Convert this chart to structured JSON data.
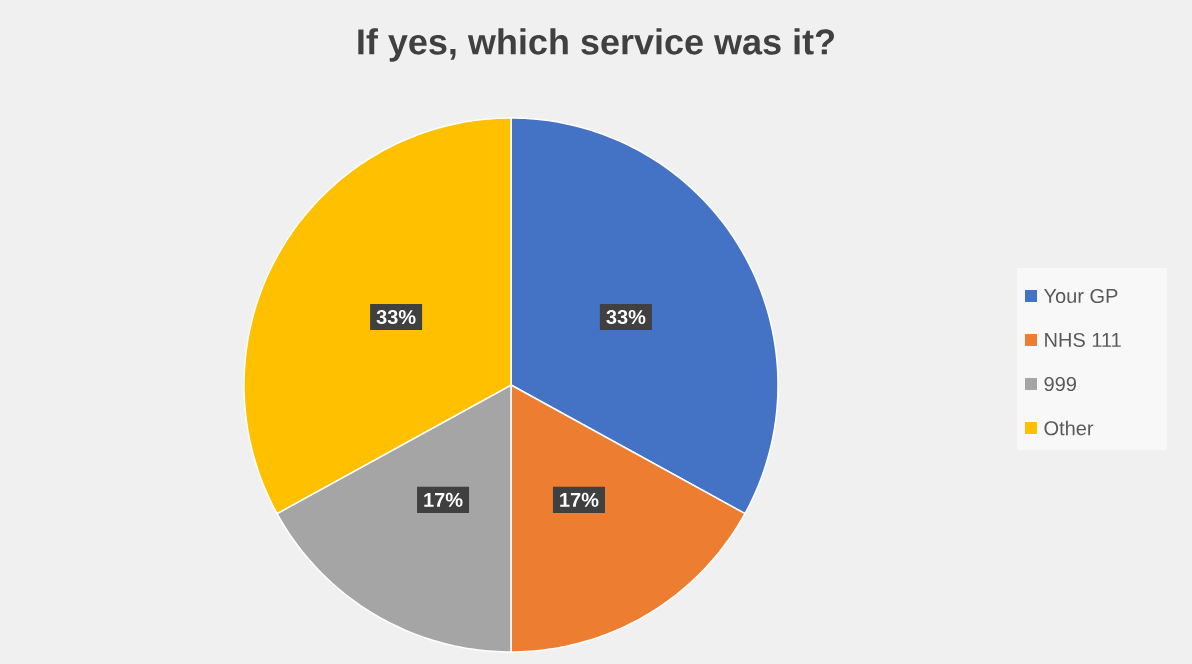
{
  "chart_data": {
    "type": "pie",
    "title": "If yes, which service was it?",
    "categories": [
      "Your GP",
      "NHS 111",
      "999",
      "Other"
    ],
    "values": [
      33,
      17,
      17,
      33
    ],
    "value_labels": [
      "33%",
      "17%",
      "17%",
      "33%"
    ],
    "colors": [
      "#4472c4",
      "#ed7d31",
      "#a5a5a5",
      "#ffc000"
    ],
    "legend": "right"
  }
}
